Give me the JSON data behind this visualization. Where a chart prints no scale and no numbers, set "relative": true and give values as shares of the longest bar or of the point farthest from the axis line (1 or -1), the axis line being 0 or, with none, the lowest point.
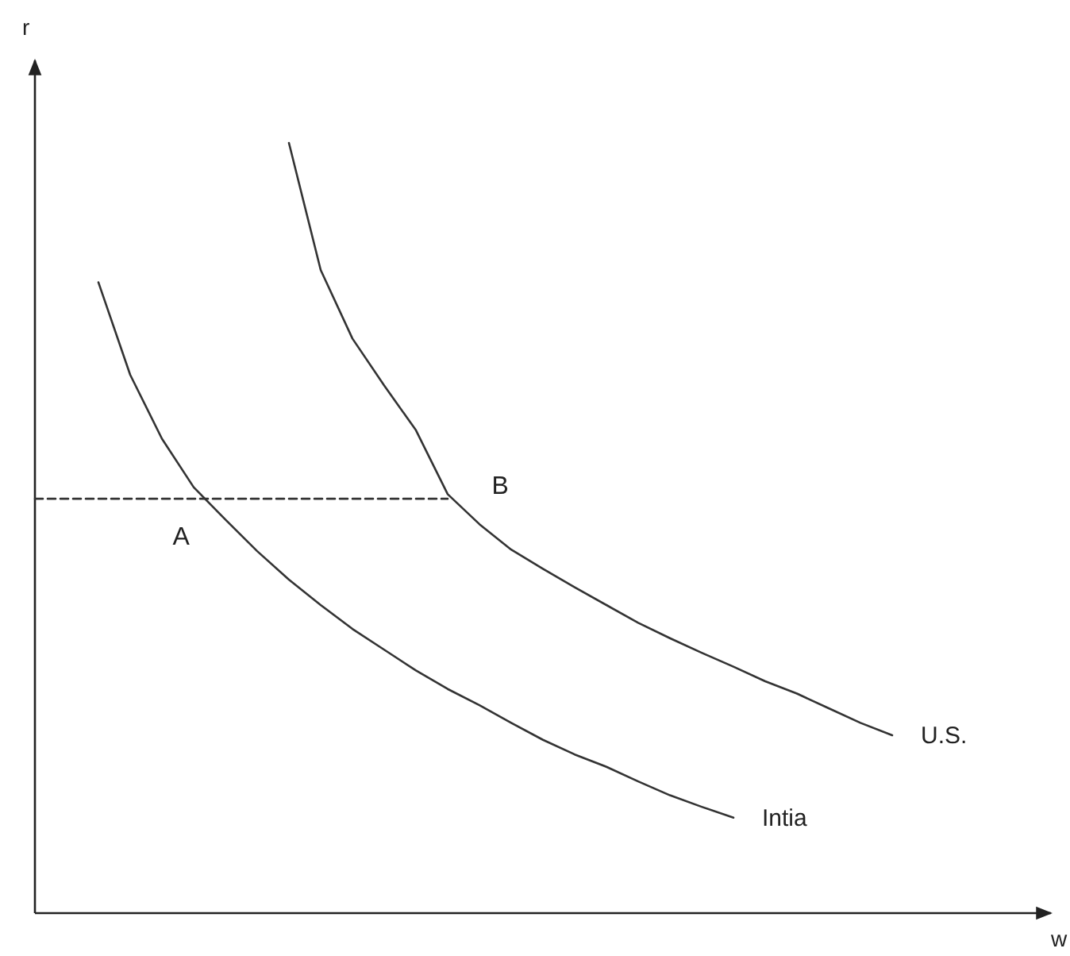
{
  "chart_data": {
    "type": "line",
    "relative": true,
    "xlabel": "w",
    "ylabel": "r",
    "marker": "none",
    "line_style": "solid",
    "categories": [
      null,
      null,
      null,
      null,
      null,
      null,
      null,
      null,
      null,
      null,
      null,
      null,
      null,
      null,
      null,
      null,
      null,
      null,
      null,
      null,
      null,
      null,
      null,
      null,
      null,
      null,
      null,
      null,
      null,
      null,
      null,
      null
    ],
    "series": [
      {
        "name": "U.S.",
        "color": "#333333",
        "values": [
          null,
          null,
          null,
          null,
          null,
          null,
          null,
          null,
          1,
          0.835,
          0.746,
          0.685,
          0.627,
          0.544,
          0.505,
          0.472,
          0.447,
          0.423,
          0.4,
          0.377,
          0.357,
          0.338,
          0.32,
          0.301,
          0.285,
          0.266,
          0.247,
          0.231,
          null,
          null,
          null,
          null
        ]
      },
      {
        "name": "Intia",
        "color": "#333333",
        "values": [
          null,
          null,
          0.819,
          0.699,
          0.616,
          0.553,
          0.511,
          0.47,
          0.433,
          0.4,
          0.369,
          0.342,
          0.315,
          0.291,
          0.27,
          0.247,
          0.225,
          0.206,
          0.19,
          0.171,
          0.153,
          0.138,
          0.124,
          null,
          null,
          null,
          null,
          null,
          null,
          null,
          null,
          null
        ]
      },
      {
        "color": "#333333",
        "line_style": "dashed",
        "values": [
          0.538,
          0.538,
          0.538,
          0.538,
          0.538,
          0.538,
          0.538,
          0.538,
          0.538,
          0.538,
          0.538,
          0.538,
          0.538,
          0.538,
          null,
          null,
          null,
          null,
          null,
          null,
          null,
          null,
          null,
          null,
          null,
          null,
          null,
          null,
          null,
          null,
          null,
          null
        ]
      }
    ],
    "annotations": [
      "A",
      "B"
    ]
  }
}
